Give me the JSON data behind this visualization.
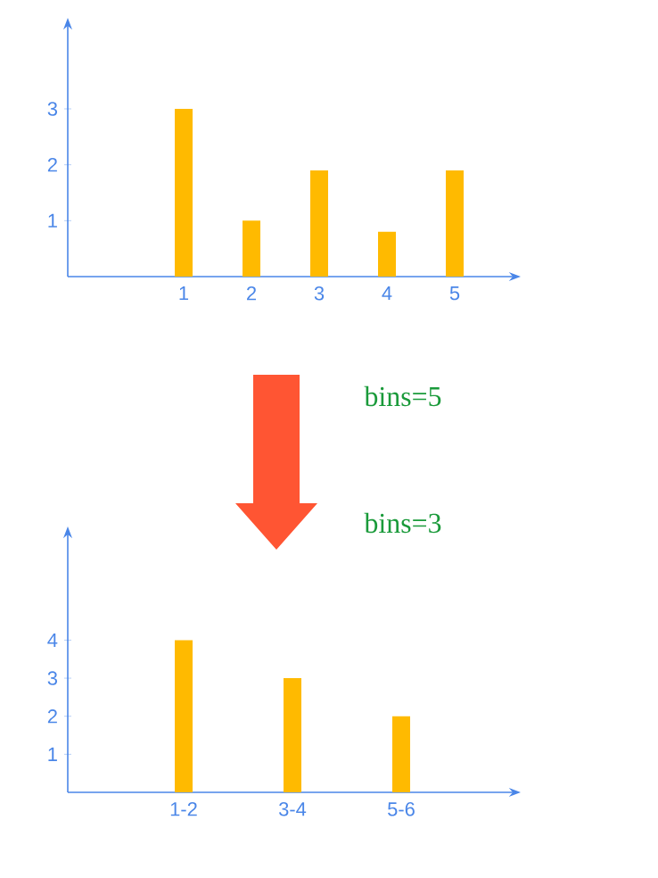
{
  "chart_data": [
    {
      "type": "bar",
      "categories": [
        "1",
        "2",
        "3",
        "4",
        "5"
      ],
      "values": [
        3,
        1,
        1.9,
        0.8,
        1.9
      ],
      "color": "#ffba00",
      "ylim": [
        0,
        4.5
      ],
      "yticks": [
        1,
        2,
        3
      ],
      "annotations": [
        "bins=5"
      ]
    },
    {
      "type": "bar",
      "categories": [
        "1-2",
        "3-4",
        "5-6"
      ],
      "values": [
        4,
        3,
        2
      ],
      "color": "#ffba00",
      "ylim": [
        0,
        6.8
      ],
      "yticks": [
        1,
        2,
        3,
        4
      ],
      "annotations": [
        "bins=3"
      ]
    }
  ]
}
